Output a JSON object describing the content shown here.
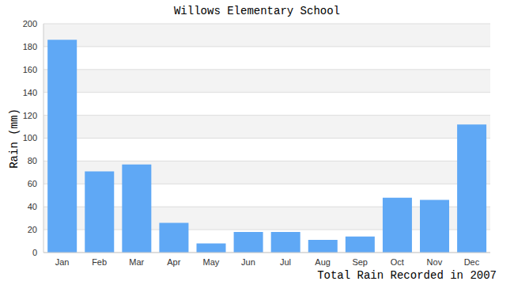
{
  "chart_data": {
    "type": "bar",
    "title": "Willows Elementary School",
    "subtitle": "Total Rain Recorded in 2007",
    "y_label": "Rain (mm)",
    "categories": [
      "Jan",
      "Feb",
      "Mar",
      "Apr",
      "May",
      "Jun",
      "Jul",
      "Aug",
      "Sep",
      "Oct",
      "Nov",
      "Dec"
    ],
    "values": [
      186,
      71,
      77,
      26,
      8,
      18,
      18,
      11,
      14,
      48,
      46,
      112
    ],
    "color": "#5fa8f5",
    "ylim": [
      0,
      200
    ],
    "yticks": [
      0,
      20,
      40,
      60,
      80,
      100,
      120,
      140,
      160,
      180,
      200
    ],
    "grid": true
  }
}
